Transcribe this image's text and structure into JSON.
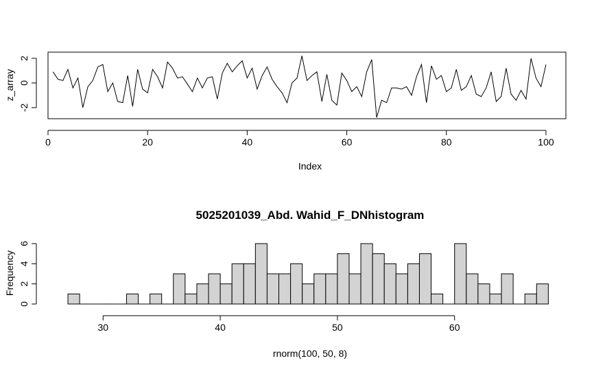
{
  "chart_data": [
    {
      "type": "line",
      "title": "",
      "xlabel": "Index",
      "ylabel": "z_array",
      "xlim": [
        0,
        104
      ],
      "ylim": [
        -2.9,
        2.5
      ],
      "xticks": [
        0,
        20,
        40,
        60,
        80,
        100
      ],
      "yticks": [
        -2,
        0,
        2
      ],
      "x": [
        1,
        2,
        3,
        4,
        5,
        6,
        7,
        8,
        9,
        10,
        11,
        12,
        13,
        14,
        15,
        16,
        17,
        18,
        19,
        20,
        21,
        22,
        23,
        24,
        25,
        26,
        27,
        28,
        29,
        30,
        31,
        32,
        33,
        34,
        35,
        36,
        37,
        38,
        39,
        40,
        41,
        42,
        43,
        44,
        45,
        46,
        47,
        48,
        49,
        50,
        51,
        52,
        53,
        54,
        55,
        56,
        57,
        58,
        59,
        60,
        61,
        62,
        63,
        64,
        65,
        66,
        67,
        68,
        69,
        70,
        71,
        72,
        73,
        74,
        75,
        76,
        77,
        78,
        79,
        80,
        81,
        82,
        83,
        84,
        85,
        86,
        87,
        88,
        89,
        90,
        91,
        92,
        93,
        94,
        95,
        96,
        97,
        98,
        99,
        100
      ],
      "values": [
        0.9,
        0.3,
        0.2,
        1.1,
        -0.4,
        0.4,
        -2.0,
        -0.3,
        0.2,
        1.3,
        1.5,
        -0.7,
        0.0,
        -1.5,
        -1.6,
        0.6,
        -1.9,
        1.1,
        -0.5,
        -0.8,
        1.1,
        0.5,
        -0.4,
        1.7,
        1.2,
        0.4,
        0.5,
        -0.1,
        -0.7,
        0.4,
        -0.4,
        0.4,
        0.5,
        -1.3,
        0.8,
        1.6,
        0.9,
        1.4,
        1.8,
        0.4,
        1.2,
        -0.5,
        0.6,
        1.3,
        0.3,
        -0.3,
        -0.8,
        -1.6,
        0.0,
        0.4,
        2.2,
        0.2,
        0.6,
        0.9,
        -1.5,
        0.7,
        -1.4,
        -1.8,
        0.8,
        0.2,
        -0.7,
        -0.3,
        -1.1,
        0.9,
        1.9,
        -2.8,
        -1.4,
        -1.6,
        -0.4,
        -0.4,
        -0.5,
        -0.3,
        -1.0,
        0.5,
        1.5,
        -1.6,
        1.4,
        0.3,
        0.6,
        -0.7,
        -0.4,
        1.1,
        -0.6,
        -0.3,
        0.6,
        -0.9,
        -1.1,
        -0.4,
        0.9,
        -1.5,
        -1.1,
        1.2,
        -0.9,
        -1.4,
        -0.6,
        -1.3,
        2.0,
        0.4,
        -0.3,
        1.5
      ]
    },
    {
      "type": "bar",
      "title": "5025201039_Abd. Wahid_F_DNhistogram",
      "xlabel": "rnorm(100, 50, 8)",
      "ylabel": "Frequency",
      "xlim": [
        25.3,
        69.5
      ],
      "ylim": [
        0,
        6
      ],
      "xticks": [
        30,
        40,
        50,
        60
      ],
      "yticks": [
        0,
        2,
        4,
        6
      ],
      "bin_width": 1,
      "categories": [
        27,
        28,
        29,
        30,
        31,
        32,
        33,
        34,
        35,
        36,
        37,
        38,
        39,
        40,
        41,
        42,
        43,
        44,
        45,
        46,
        47,
        48,
        49,
        50,
        51,
        52,
        53,
        54,
        55,
        56,
        57,
        58,
        59,
        60,
        61,
        62,
        63,
        64,
        65,
        66,
        67
      ],
      "values": [
        1,
        0,
        0,
        0,
        0,
        1,
        0,
        1,
        0,
        3,
        1,
        2,
        3,
        2,
        4,
        4,
        6,
        3,
        3,
        4,
        2,
        3,
        3,
        5,
        3,
        6,
        5,
        4,
        3,
        4,
        5,
        1,
        0,
        6,
        3,
        2,
        1,
        3,
        0,
        1,
        2
      ]
    }
  ]
}
